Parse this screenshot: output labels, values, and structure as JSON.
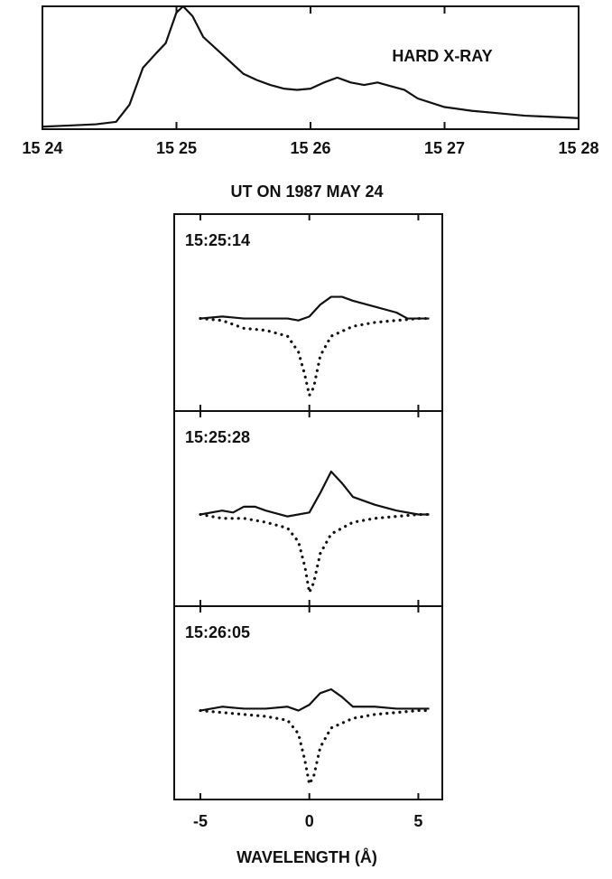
{
  "chart_data": [
    {
      "type": "line",
      "xlabel": "UT ON 1987 MAY 24",
      "annotation": "HARD X-RAY",
      "xlim": [
        0,
        4
      ],
      "ylim": [
        0,
        100
      ],
      "xticks": [
        {
          "value": 0,
          "label": "15 24"
        },
        {
          "value": 1,
          "label": "15 25"
        },
        {
          "value": 2,
          "label": "15 26"
        },
        {
          "value": 3,
          "label": "15 27"
        },
        {
          "value": 4,
          "label": "15 28"
        }
      ],
      "xtick_labels": true,
      "series": [
        {
          "style": "solid",
          "x": [
            0,
            0.2,
            0.4,
            0.55,
            0.65,
            0.75,
            0.85,
            0.92,
            1.0,
            1.05,
            1.12,
            1.2,
            1.3,
            1.4,
            1.5,
            1.6,
            1.7,
            1.8,
            1.9,
            2.0,
            2.1,
            2.2,
            2.3,
            2.4,
            2.5,
            2.6,
            2.7,
            2.8,
            3.0,
            3.2,
            3.4,
            3.6,
            3.8,
            4.0
          ],
          "values": [
            2,
            3,
            4,
            6,
            20,
            50,
            62,
            70,
            95,
            100,
            92,
            75,
            65,
            55,
            45,
            40,
            36,
            33,
            32,
            33,
            38,
            42,
            38,
            36,
            38,
            35,
            32,
            25,
            18,
            15,
            13,
            11,
            10,
            9
          ]
        }
      ]
    },
    {
      "type": "line",
      "title": "15:25:14",
      "xlim": [
        -6.2,
        6.1
      ],
      "ylim": [
        0,
        100
      ],
      "xticks": [
        -5,
        0,
        5
      ],
      "xtick_labels": false,
      "series": [
        {
          "style": "solid",
          "x": [
            -5,
            -4,
            -3,
            -2,
            -1,
            -0.5,
            0,
            0.5,
            1,
            1.5,
            2,
            3,
            4,
            4.5,
            5.5
          ],
          "values": [
            47,
            48,
            47,
            47,
            47,
            46,
            48,
            54,
            58,
            58,
            56,
            53,
            50,
            47,
            47
          ]
        },
        {
          "style": "dotted",
          "x": [
            -5,
            -4,
            -3,
            -2,
            -1,
            -0.5,
            -0.2,
            0,
            0.2,
            0.5,
            1,
            2,
            3,
            4,
            5,
            5.5
          ],
          "values": [
            47,
            46,
            42,
            41,
            38,
            30,
            18,
            8,
            12,
            28,
            38,
            43,
            45,
            46,
            47,
            47
          ]
        }
      ]
    },
    {
      "type": "line",
      "title": "15:25:28",
      "xlim": [
        -6.2,
        6.1
      ],
      "ylim": [
        0,
        100
      ],
      "xticks": [
        -5,
        0,
        5
      ],
      "xtick_labels": false,
      "series": [
        {
          "style": "solid",
          "x": [
            -5,
            -4,
            -3.5,
            -3,
            -2.5,
            -2,
            -1,
            0,
            0.5,
            1,
            1.5,
            2,
            3,
            4,
            5,
            5.5
          ],
          "values": [
            47,
            49,
            48,
            51,
            51,
            49,
            46,
            48,
            58,
            69,
            63,
            56,
            52,
            49,
            47,
            47
          ]
        },
        {
          "style": "dotted",
          "x": [
            -5,
            -4,
            -3,
            -2,
            -1,
            -0.5,
            -0.2,
            0,
            0.2,
            0.5,
            1,
            2,
            3,
            4,
            5,
            5.5
          ],
          "values": [
            47,
            45,
            45,
            43,
            40,
            33,
            20,
            7,
            12,
            27,
            37,
            43,
            45,
            46,
            47,
            47
          ]
        }
      ]
    },
    {
      "type": "line",
      "title": "15:26:05",
      "xlabel": "WAVELENGTH (Å)",
      "xlim": [
        -6.2,
        6.1
      ],
      "ylim": [
        0,
        100
      ],
      "xticks": [
        -5,
        0,
        5
      ],
      "xtick_labels": true,
      "series": [
        {
          "style": "solid",
          "x": [
            -5,
            -4,
            -3,
            -2,
            -1,
            -0.5,
            0,
            0.5,
            1,
            1.5,
            2,
            3,
            4,
            5,
            5.5
          ],
          "values": [
            46,
            48,
            47,
            47,
            48,
            46,
            49,
            55,
            57,
            53,
            48,
            48,
            47,
            47,
            47
          ]
        },
        {
          "style": "dotted",
          "x": [
            -5,
            -4,
            -3,
            -2,
            -1,
            -0.5,
            -0.2,
            0,
            0.2,
            0.5,
            1,
            2,
            3,
            4,
            5,
            5.5
          ],
          "values": [
            46,
            45,
            44,
            43,
            41,
            34,
            20,
            8,
            12,
            27,
            37,
            42,
            44,
            45,
            46,
            46
          ]
        }
      ]
    }
  ]
}
